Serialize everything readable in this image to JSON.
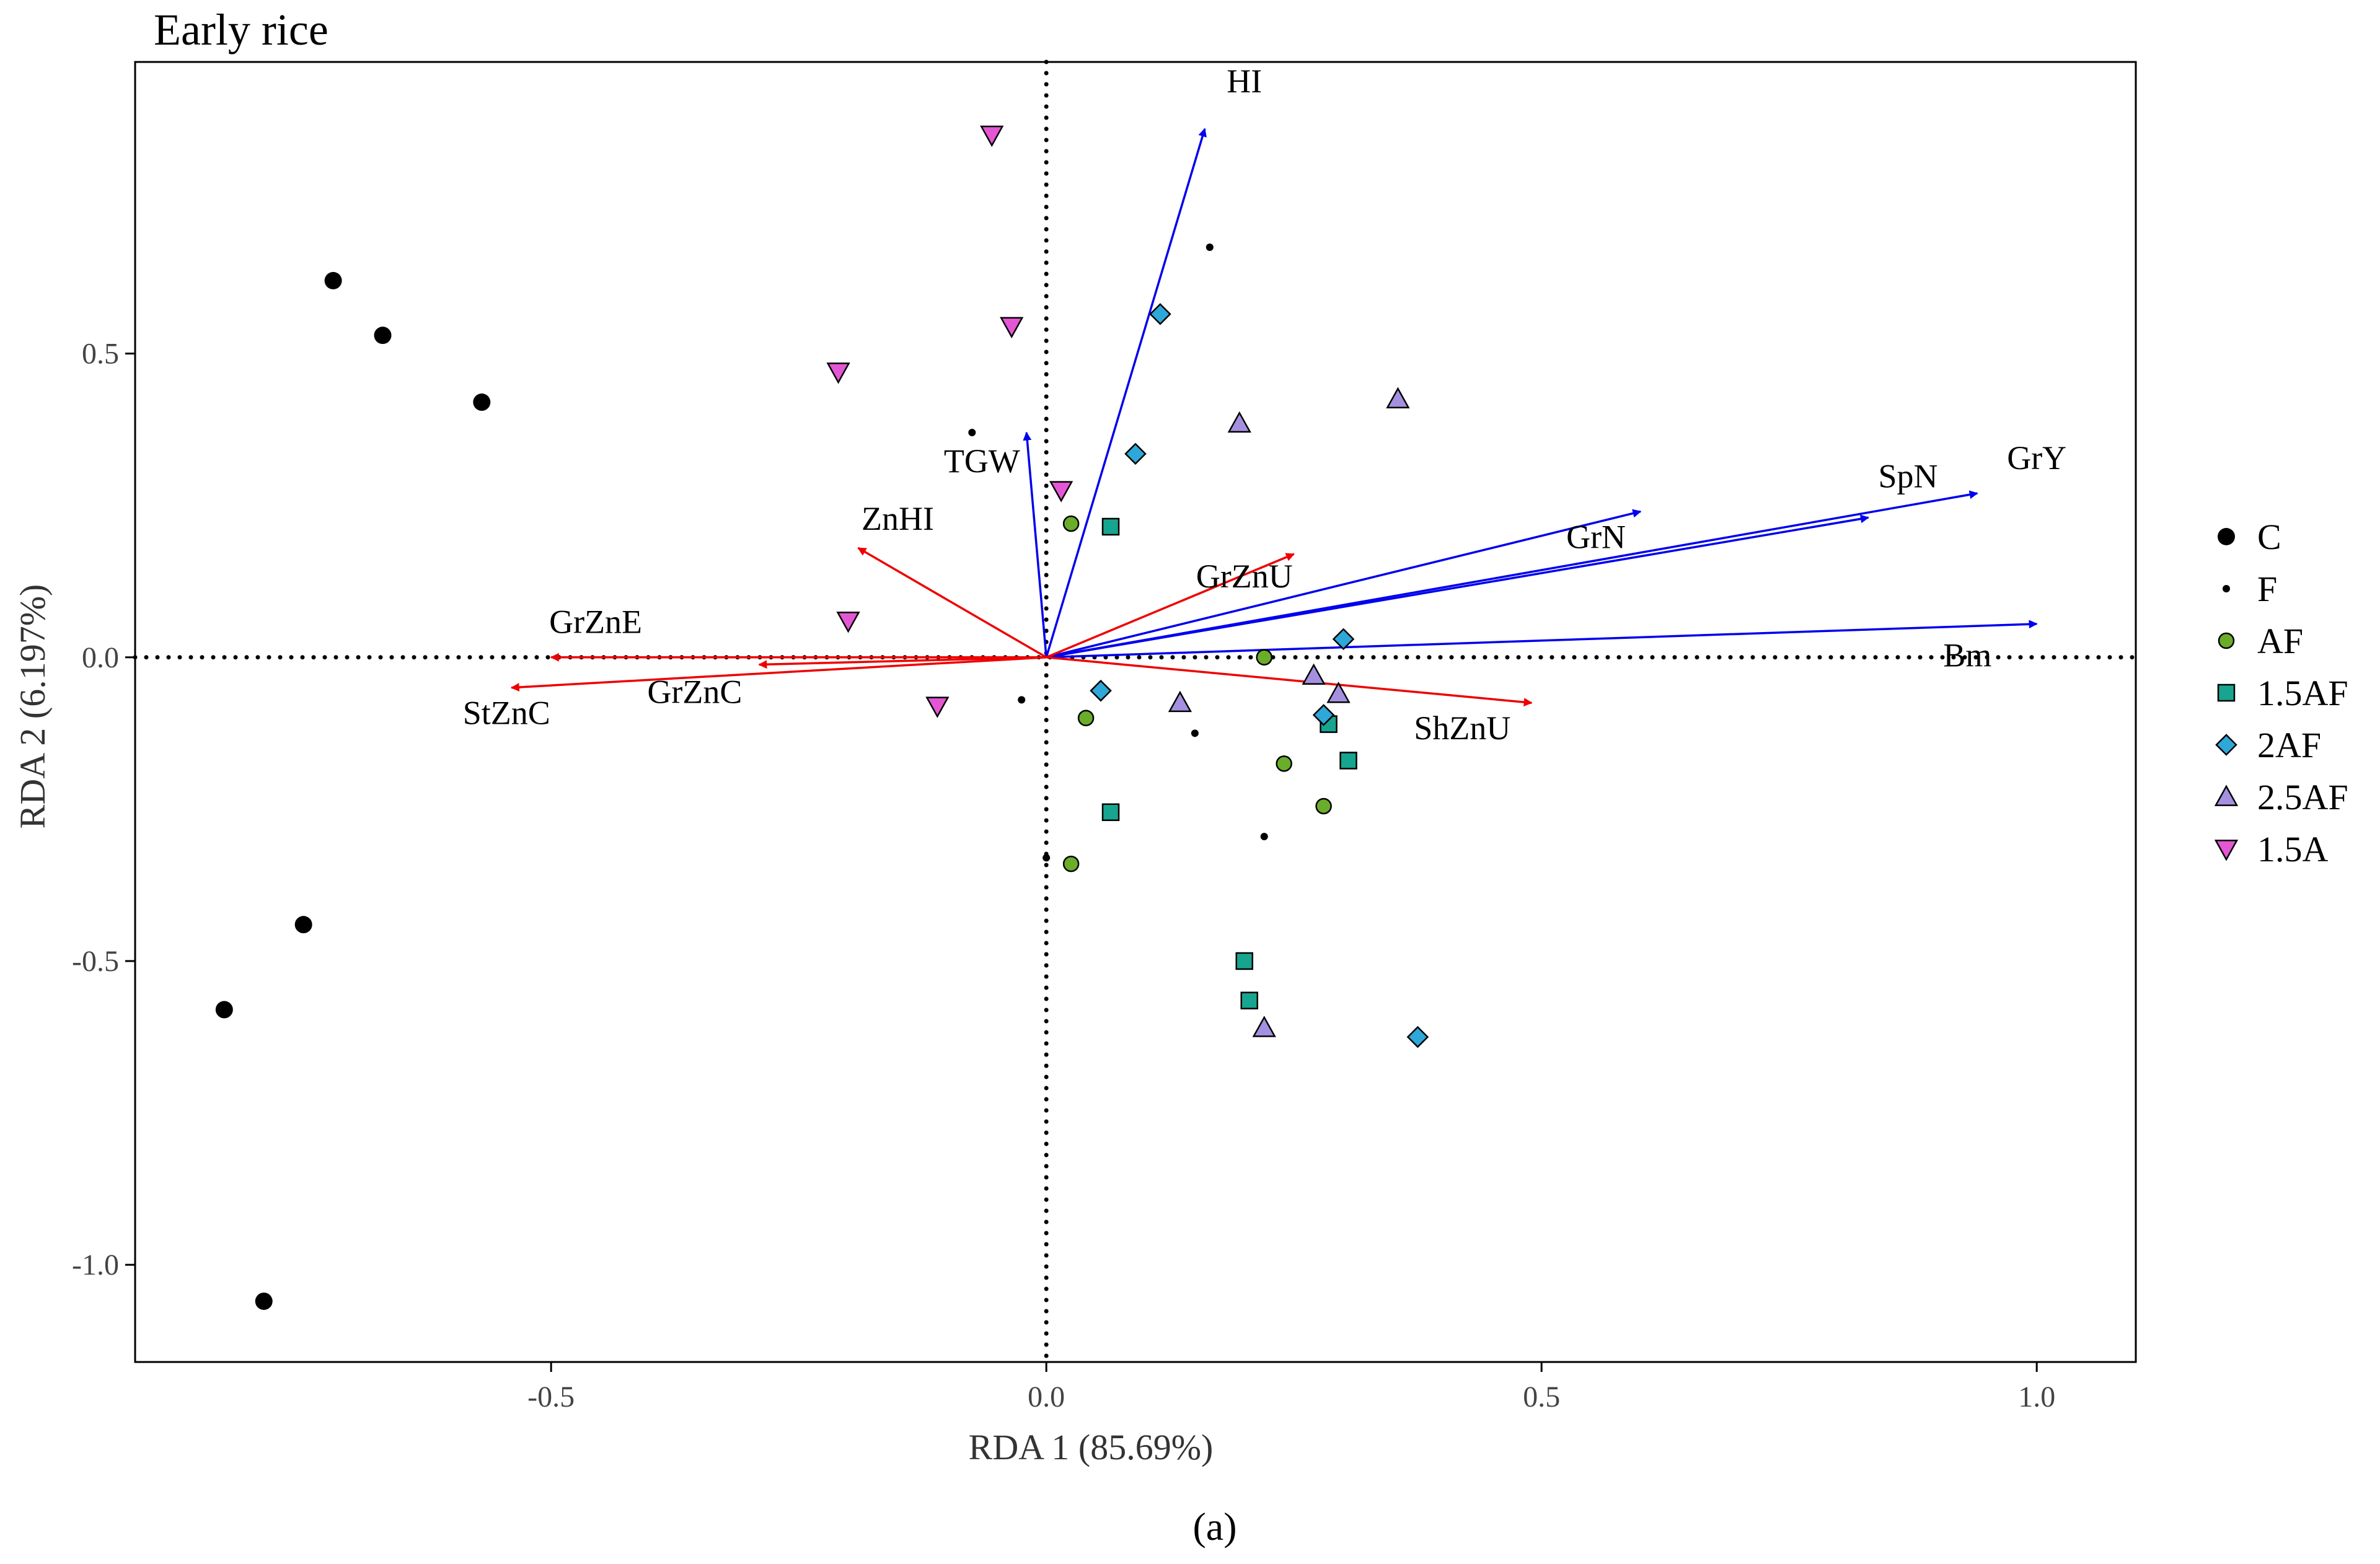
{
  "chart_data": {
    "type": "scatter",
    "subtype": "rda-biplot",
    "title": "Early rice",
    "xlabel": "RDA 1 (85.69%)",
    "ylabel": "RDA 2 (6.197%)",
    "caption": "(a)",
    "xlim": [
      -0.92,
      1.1
    ],
    "ylim": [
      -1.16,
      0.98
    ],
    "xticks": [
      -0.5,
      0.0,
      0.5,
      1.0
    ],
    "xtick_labels": [
      "-0.5",
      "0.0",
      "0.5",
      "1.0"
    ],
    "yticks": [
      -1.0,
      -0.5,
      0.0,
      0.5
    ],
    "ytick_labels": [
      "-1.0",
      "-0.5",
      "0.0",
      "0.5"
    ],
    "grid": false,
    "reference_lines": [
      "x=0",
      "y=0"
    ],
    "legend_position": "right",
    "groups": [
      {
        "name": "C",
        "marker": "circle",
        "size": "large",
        "color": "#000000",
        "points": [
          [
            -0.72,
            0.62
          ],
          [
            -0.67,
            0.53
          ],
          [
            -0.57,
            0.42
          ],
          [
            -0.75,
            -0.44
          ],
          [
            -0.83,
            -0.58
          ],
          [
            -0.79,
            -1.06
          ]
        ]
      },
      {
        "name": "F",
        "marker": "circle",
        "size": "small",
        "color": "#000000",
        "points": [
          [
            0.165,
            0.675
          ],
          [
            -0.075,
            0.37
          ],
          [
            -0.025,
            -0.07
          ],
          [
            0.15,
            -0.125
          ],
          [
            0.22,
            -0.295
          ],
          [
            0.0,
            -0.33
          ]
        ]
      },
      {
        "name": "AF",
        "marker": "circle",
        "size": "medium",
        "color": "#6aad2a",
        "points": [
          [
            0.025,
            0.22
          ],
          [
            0.22,
            0.0
          ],
          [
            0.04,
            -0.1
          ],
          [
            0.24,
            -0.175
          ],
          [
            0.28,
            -0.245
          ],
          [
            0.025,
            -0.34
          ]
        ]
      },
      {
        "name": "1.5AF",
        "marker": "square",
        "size": "medium",
        "color": "#17a58f",
        "points": [
          [
            0.065,
            0.215
          ],
          [
            0.285,
            -0.11
          ],
          [
            0.305,
            -0.17
          ],
          [
            0.065,
            -0.255
          ],
          [
            0.2,
            -0.5
          ],
          [
            0.205,
            -0.565
          ]
        ]
      },
      {
        "name": "2AF",
        "marker": "diamond",
        "size": "medium",
        "color": "#2ea8d8",
        "points": [
          [
            0.115,
            0.565
          ],
          [
            0.09,
            0.335
          ],
          [
            0.3,
            0.03
          ],
          [
            0.055,
            -0.055
          ],
          [
            0.28,
            -0.095
          ],
          [
            0.375,
            -0.625
          ]
        ]
      },
      {
        "name": "2.5AF",
        "marker": "triangle-up",
        "size": "medium",
        "color": "#a590e0",
        "points": [
          [
            0.355,
            0.425
          ],
          [
            0.195,
            0.385
          ],
          [
            0.27,
            -0.03
          ],
          [
            0.295,
            -0.06
          ],
          [
            0.135,
            -0.075
          ],
          [
            0.22,
            -0.61
          ]
        ]
      },
      {
        "name": "1.5A",
        "marker": "triangle-down",
        "size": "medium",
        "color": "#e457d4",
        "points": [
          [
            -0.055,
            0.86
          ],
          [
            -0.035,
            0.545
          ],
          [
            -0.21,
            0.47
          ],
          [
            0.015,
            0.275
          ],
          [
            -0.2,
            0.06
          ],
          [
            -0.11,
            -0.08
          ]
        ]
      }
    ],
    "arrows": [
      {
        "label": "HI",
        "color": "#0000ee",
        "x": 0.16,
        "y": 0.87,
        "label_x": 0.2,
        "label_y": 0.93,
        "anchor": "middle"
      },
      {
        "label": "TGW",
        "color": "#0000ee",
        "x": -0.02,
        "y": 0.37,
        "label_x": -0.065,
        "label_y": 0.305,
        "anchor": "middle"
      },
      {
        "label": "GrN",
        "color": "#0000ee",
        "x": 0.6,
        "y": 0.24,
        "label_x": 0.555,
        "label_y": 0.18,
        "anchor": "middle"
      },
      {
        "label": "SpN",
        "color": "#0000ee",
        "x": 0.83,
        "y": 0.23,
        "label_x": 0.87,
        "label_y": 0.28,
        "anchor": "middle"
      },
      {
        "label": "GrY",
        "color": "#0000ee",
        "x": 0.94,
        "y": 0.27,
        "label_x": 1.0,
        "label_y": 0.31,
        "anchor": "middle"
      },
      {
        "label": "Bm",
        "color": "#0000ee",
        "x": 1.0,
        "y": 0.055,
        "label_x": 0.93,
        "label_y": -0.015,
        "anchor": "middle"
      },
      {
        "label": "ZnHI",
        "color": "#ee0000",
        "x": -0.19,
        "y": 0.18,
        "label_x": -0.15,
        "label_y": 0.21,
        "anchor": "middle"
      },
      {
        "label": "GrZnE",
        "color": "#ee0000",
        "x": -0.5,
        "y": 0.0,
        "label_x": -0.455,
        "label_y": 0.04,
        "anchor": "middle"
      },
      {
        "label": "StZnC",
        "color": "#ee0000",
        "x": -0.54,
        "y": -0.05,
        "label_x": -0.545,
        "label_y": -0.11,
        "anchor": "middle"
      },
      {
        "label": "GrZnC",
        "color": "#ee0000",
        "x": -0.29,
        "y": -0.012,
        "label_x": -0.355,
        "label_y": -0.075,
        "anchor": "middle"
      },
      {
        "label": "GrZnU",
        "color": "#ee0000",
        "x": 0.25,
        "y": 0.17,
        "label_x": 0.2,
        "label_y": 0.115,
        "anchor": "middle"
      },
      {
        "label": "ShZnU",
        "color": "#ee0000",
        "x": 0.49,
        "y": -0.075,
        "label_x": 0.42,
        "label_y": -0.135,
        "anchor": "middle"
      }
    ]
  }
}
